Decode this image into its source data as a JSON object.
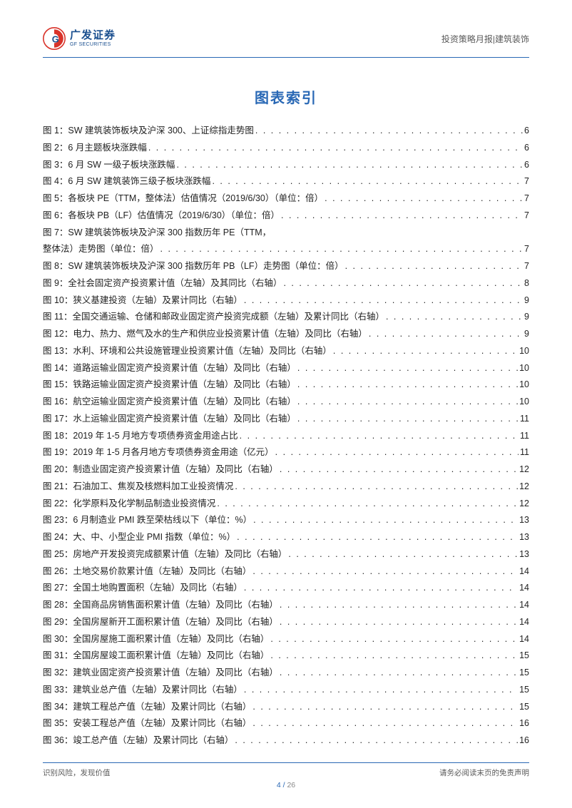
{
  "header": {
    "logo_cn": "广发证券",
    "logo_en": "GF SECURITIES",
    "right_text": "投资策略月报|建筑装饰"
  },
  "title": "图表索引",
  "toc": [
    {
      "label": "图 1：SW 建筑装饰板块及沪深 300、上证综指走势图",
      "page": "6"
    },
    {
      "label": "图 2：6 月主题板块涨跌幅",
      "page": "6"
    },
    {
      "label": "图 3：6 月 SW 一级子板块涨跌幅",
      "page": "6"
    },
    {
      "label": "图 4：6 月 SW 建筑装饰三级子板块涨跌幅",
      "page": "7"
    },
    {
      "label": "图 5：各板块 PE（TTM，整体法）估值情况（2019/6/30）（单位：倍）",
      "page": "7"
    },
    {
      "label": "图 6：各板块 PB（LF）估值情况（2019/6/30）（单位：倍）",
      "page": "7"
    },
    {
      "label": "图 7：SW 建筑装饰板块及沪深 300 指数历年 PE（TTM，整体法）走势图（单位：倍）",
      "page": "7"
    },
    {
      "label": "图 8：SW 建筑装饰板块及沪深 300 指数历年 PB（LF）走势图（单位：倍）",
      "page": "7"
    },
    {
      "label": "图 9：全社会固定资产投资累计值（左轴）及其同比（右轴）",
      "page": "8"
    },
    {
      "label": "图 10：狭义基建投资（左轴）及累计同比（右轴）",
      "page": "9"
    },
    {
      "label": "图 11：全国交通运输、仓储和邮政业固定资产投资完成额（左轴）及累计同比（右轴）",
      "page": "9"
    },
    {
      "label": "图 12：电力、热力、燃气及水的生产和供应业投资累计值（左轴）及同比（右轴）",
      "page": "9"
    },
    {
      "label": "图 13：水利、环境和公共设施管理业投资累计值（左轴）及同比（右轴）",
      "page": "10"
    },
    {
      "label": "图 14：道路运输业固定资产投资累计值（左轴）及同比（右轴）",
      "page": "10"
    },
    {
      "label": "图 15：铁路运输业固定资产投资累计值（左轴）及同比（右轴）",
      "page": "10"
    },
    {
      "label": "图 16：航空运输业固定资产投资累计值（左轴）及同比（右轴）",
      "page": "10"
    },
    {
      "label": "图 17：水上运输业固定资产投资累计值（左轴）及同比（右轴）",
      "page": "11"
    },
    {
      "label": "图 18：2019 年 1-5 月地方专项债券资金用途占比",
      "page": "11"
    },
    {
      "label": "图 19：2019 年 1-5 月各月地方专项债券资金用途（亿元）",
      "page": "11"
    },
    {
      "label": "图 20：制造业固定资产投资累计值（左轴）及同比（右轴）",
      "page": "12"
    },
    {
      "label": "图 21：石油加工、焦炭及核燃料加工业投资情况",
      "page": "12"
    },
    {
      "label": "图 22：化学原料及化学制品制造业投资情况",
      "page": "12"
    },
    {
      "label": "图 23：6 月制造业 PMI 跌至荣枯线以下（单位：%）",
      "page": "13"
    },
    {
      "label": "图 24：大、中、小型企业 PMI 指数（单位：%）",
      "page": "13"
    },
    {
      "label": "图 25：房地产开发投资完成额累计值（左轴）及同比（右轴）",
      "page": "13"
    },
    {
      "label": "图 26：土地交易价款累计值（左轴）及同比（右轴）",
      "page": "14"
    },
    {
      "label": "图 27：全国土地购置面积（左轴）及同比（右轴）",
      "page": "14"
    },
    {
      "label": "图 28：全国商品房销售面积累计值（左轴）及同比（右轴）",
      "page": "14"
    },
    {
      "label": "图 29：全国房屋新开工面积累计值（左轴）及同比（右轴）",
      "page": "14"
    },
    {
      "label": "图 30：全国房屋施工面积累计值（左轴）及同比（右轴）",
      "page": "14"
    },
    {
      "label": "图 31：全国房屋竣工面积累计值（左轴）及同比（右轴）",
      "page": "15"
    },
    {
      "label": "图 32：建筑业固定资产投资累计值（左轴）及同比（右轴）",
      "page": "15"
    },
    {
      "label": "图 33：建筑业总产值（左轴）及累计同比（右轴）",
      "page": "15"
    },
    {
      "label": "图 34：建筑工程总产值（左轴）及累计同比（右轴）",
      "page": "15"
    },
    {
      "label": "图 35：安装工程总产值（左轴）及累计同比（右轴）",
      "page": "16"
    },
    {
      "label": "图 36：竣工总产值（左轴）及累计同比（右轴）",
      "page": "16"
    }
  ],
  "footer": {
    "left": "识别风险，发现价值",
    "right": "请务必阅读末页的免责声明",
    "page_current": "4",
    "page_sep": " / ",
    "page_total": "26"
  },
  "colors": {
    "brand": "#2968b5",
    "text": "#222222",
    "muted": "#5a5a5a"
  }
}
